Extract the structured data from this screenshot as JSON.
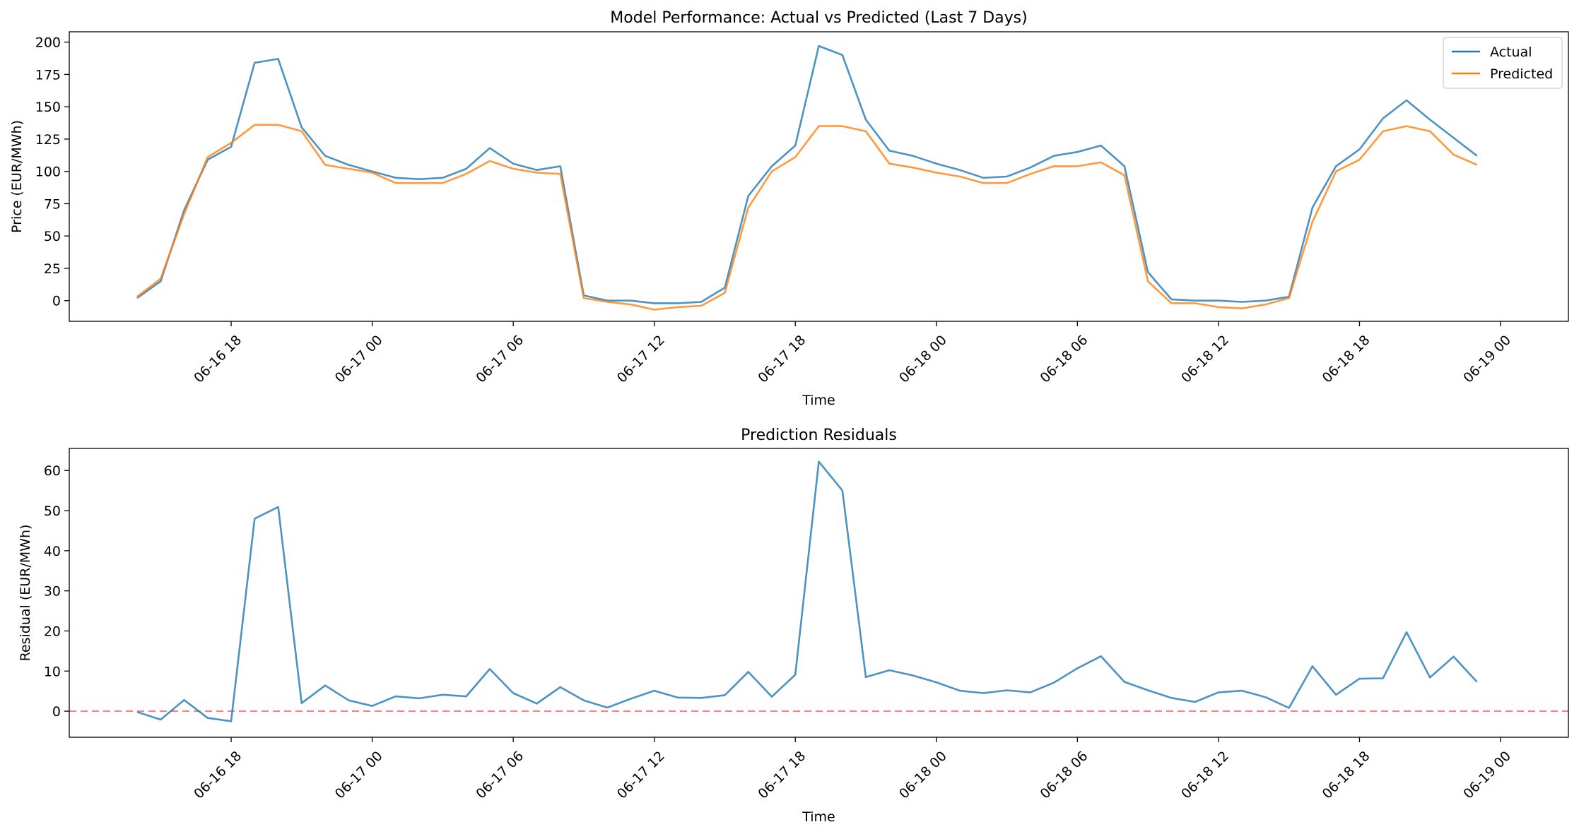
{
  "chart_data": [
    {
      "type": "line",
      "title": "Model Performance: Actual vs Predicted (Last 7 Days)",
      "xlabel": "Time",
      "ylabel": "Price (EUR/MWh)",
      "ylim": [
        -16,
        208
      ],
      "yticks": [
        0,
        25,
        50,
        75,
        100,
        125,
        150,
        175,
        200
      ],
      "x_start": "06-16 14:00",
      "x_step_hours": 1,
      "xticks": [
        "06-16 18",
        "06-17 00",
        "06-17 06",
        "06-17 12",
        "06-17 18",
        "06-18 00",
        "06-18 06",
        "06-18 12",
        "06-18 18",
        "06-19 00"
      ],
      "legend": "top-right",
      "grid": false,
      "series": [
        {
          "name": "Actual",
          "color": "#1f77b4",
          "values": [
            2,
            15,
            70,
            109,
            119,
            184,
            187,
            134,
            112,
            105,
            100,
            95,
            94,
            95,
            102,
            118,
            106,
            101,
            104,
            4,
            0,
            0,
            -2,
            -2,
            -1,
            10,
            81,
            104,
            120,
            197,
            190,
            140,
            116,
            112,
            106,
            101,
            95,
            96,
            103,
            112,
            115,
            120,
            104,
            22,
            1,
            0,
            0,
            -1,
            0,
            3,
            72,
            104,
            117,
            141,
            155,
            140,
            126,
            112
          ]
        },
        {
          "name": "Predicted",
          "color": "#ff7f0e",
          "values": [
            3,
            17,
            67,
            111,
            122,
            136,
            136,
            131,
            105,
            102,
            99,
            91,
            91,
            91,
            98,
            108,
            102,
            99,
            98,
            2,
            -1,
            -3,
            -7,
            -5,
            -4,
            6,
            72,
            100,
            111,
            135,
            135,
            131,
            106,
            103,
            99,
            96,
            91,
            91,
            98,
            104,
            104,
            107,
            97,
            15,
            -2,
            -2,
            -5,
            -6,
            -3,
            2,
            61,
            100,
            109,
            131,
            135,
            131,
            113,
            105
          ]
        }
      ]
    },
    {
      "type": "line",
      "title": "Prediction Residuals",
      "xlabel": "Time",
      "ylabel": "Residual (EUR/MWh)",
      "ylim": [
        -6.5,
        65.5
      ],
      "yticks": [
        0,
        10,
        20,
        30,
        40,
        50,
        60
      ],
      "x_start": "06-16 14:00",
      "x_step_hours": 1,
      "xticks": [
        "06-16 18",
        "06-17 00",
        "06-17 06",
        "06-17 12",
        "06-17 18",
        "06-18 00",
        "06-18 06",
        "06-18 12",
        "06-18 18",
        "06-19 00"
      ],
      "grid": false,
      "zero_line_color": "#ff7f7f",
      "series": [
        {
          "color": "#1f77b4",
          "values": [
            -0.2,
            -2.1,
            2.8,
            -1.7,
            -2.5,
            48.0,
            50.9,
            2.0,
            6.4,
            2.7,
            1.3,
            3.7,
            3.2,
            4.1,
            3.7,
            10.5,
            4.5,
            1.9,
            6.0,
            2.7,
            0.9,
            3.1,
            5.1,
            3.4,
            3.3,
            4.0,
            9.8,
            3.6,
            9.1,
            62.2,
            55.0,
            8.5,
            10.2,
            8.9,
            7.2,
            5.1,
            4.5,
            5.2,
            4.7,
            7.1,
            10.7,
            13.7,
            7.3,
            5.2,
            3.3,
            2.3,
            4.7,
            5.1,
            3.5,
            0.8,
            11.2,
            4.1,
            8.1,
            8.2,
            19.7,
            8.4,
            13.6,
            7.3
          ]
        }
      ]
    }
  ]
}
